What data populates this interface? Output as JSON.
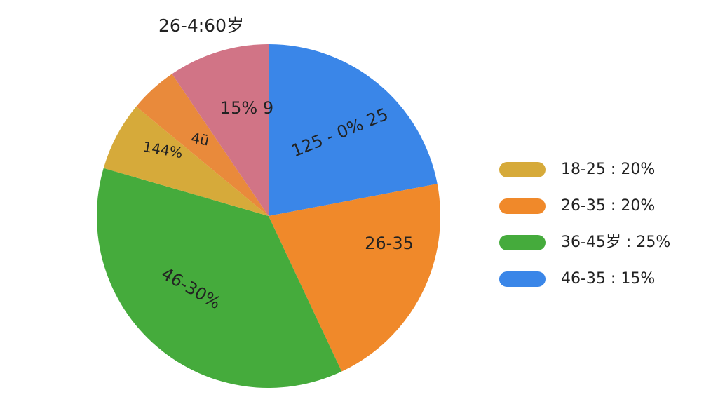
{
  "chart_data": {
    "type": "pie",
    "title": "26-4:60岁",
    "values": [
      22,
      21,
      36.5,
      6.5,
      4.5,
      9.5
    ],
    "colors": [
      "#3a86e8",
      "#f0892a",
      "#45ab3c",
      "#d6aa3a",
      "#e98a3b",
      "#d17486"
    ],
    "slice_labels": [
      "125 - 0% 25",
      "26-35",
      "46-30%",
      "144%",
      "4ü",
      "15% 9"
    ],
    "legend": [
      {
        "name": "18-25 : 20%",
        "color": "#d6aa3a"
      },
      {
        "name": "26-35 : 20%",
        "color": "#f0892a"
      },
      {
        "name": "36-45岁 : 25%",
        "color": "#45ab3c"
      },
      {
        "name": "46-35 : 15%",
        "color": "#3a86e8"
      }
    ]
  }
}
